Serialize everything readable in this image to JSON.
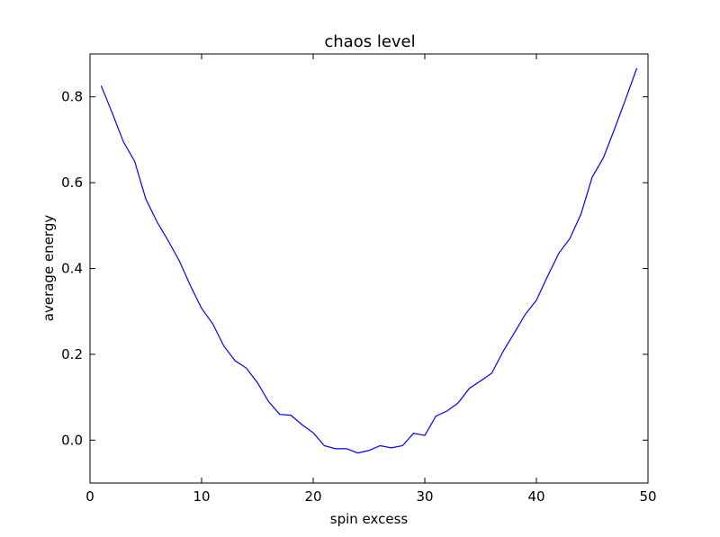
{
  "chart_data": {
    "type": "line",
    "title": "chaos level",
    "xlabel": "spin excess",
    "ylabel": "average energy",
    "xlim": [
      0,
      50
    ],
    "ylim": [
      -0.1,
      0.9
    ],
    "xticks": [
      0,
      10,
      20,
      30,
      40,
      50
    ],
    "yticks": [
      0.0,
      0.2,
      0.4,
      0.6,
      0.8
    ],
    "xtick_labels": [
      "0",
      "10",
      "20",
      "30",
      "40",
      "50"
    ],
    "ytick_labels": [
      "0.0",
      "0.2",
      "0.4",
      "0.6",
      "0.8"
    ],
    "grid": false,
    "legend": "none",
    "series": [
      {
        "color": "#0000ff",
        "x": [
          1,
          2,
          3,
          4,
          5,
          6,
          7,
          8,
          9,
          10,
          11,
          12,
          13,
          14,
          15,
          16,
          17,
          18,
          19,
          20,
          21,
          22,
          23,
          24,
          25,
          26,
          27,
          28,
          29,
          30,
          31,
          32,
          33,
          34,
          35,
          36,
          37,
          38,
          39,
          40,
          41,
          42,
          43,
          44,
          45,
          46,
          47,
          48,
          49
        ],
        "y": [
          0.826,
          0.762,
          0.695,
          0.65,
          0.562,
          0.509,
          0.465,
          0.418,
          0.36,
          0.307,
          0.271,
          0.219,
          0.185,
          0.168,
          0.134,
          0.09,
          0.06,
          0.058,
          0.036,
          0.017,
          -0.013,
          -0.02,
          -0.02,
          -0.03,
          -0.024,
          -0.013,
          -0.018,
          -0.013,
          0.016,
          0.011,
          0.056,
          0.068,
          0.087,
          0.121,
          0.138,
          0.156,
          0.206,
          0.249,
          0.293,
          0.326,
          0.382,
          0.435,
          0.47,
          0.527,
          0.613,
          0.658,
          0.725,
          0.795,
          0.867
        ]
      }
    ]
  }
}
